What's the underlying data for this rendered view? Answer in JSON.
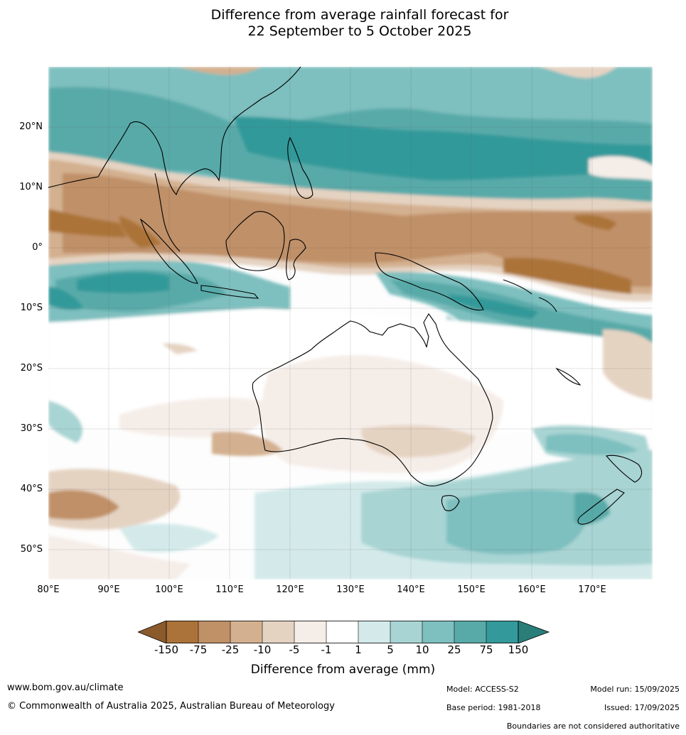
{
  "title": {
    "line1": "Difference from average rainfall forecast for",
    "line2": "22 September to 5 October 2025"
  },
  "map": {
    "lon_labels": [
      "80°E",
      "90°E",
      "100°E",
      "110°E",
      "120°E",
      "130°E",
      "140°E",
      "150°E",
      "160°E",
      "170°E"
    ],
    "lat_labels": [
      "20°N",
      "10°N",
      "0°",
      "10°S",
      "20°S",
      "30°S",
      "40°S",
      "50°S"
    ],
    "extent": {
      "lon": [
        80,
        180
      ],
      "lat": [
        -55,
        30
      ]
    }
  },
  "colorbar": {
    "ticks": [
      "-150",
      "-75",
      "-25",
      "-10",
      "-5",
      "-1",
      "1",
      "5",
      "10",
      "25",
      "75",
      "150"
    ],
    "colors": [
      "#8b5a2b",
      "#ab7339",
      "#c09067",
      "#d3b08f",
      "#e5d3c2",
      "#f5ede8",
      "#ffffff",
      "#d4eaea",
      "#a8d4d3",
      "#7ebfbf",
      "#58aaa9",
      "#33999a",
      "#2a7e7a"
    ],
    "label": "Difference from average (mm)"
  },
  "footer": {
    "url": "www.bom.gov.au/climate",
    "copyright": "© Commonwealth of Australia 2025, Australian Bureau of Meteorology",
    "model": "Model: ACCESS-S2",
    "base_period": "Base period: 1981-2018",
    "model_run": "Model run: 15/09/2025",
    "issued": "Issued: 17/09/2025",
    "disclaimer": "Boundaries are not considered authoritative"
  }
}
